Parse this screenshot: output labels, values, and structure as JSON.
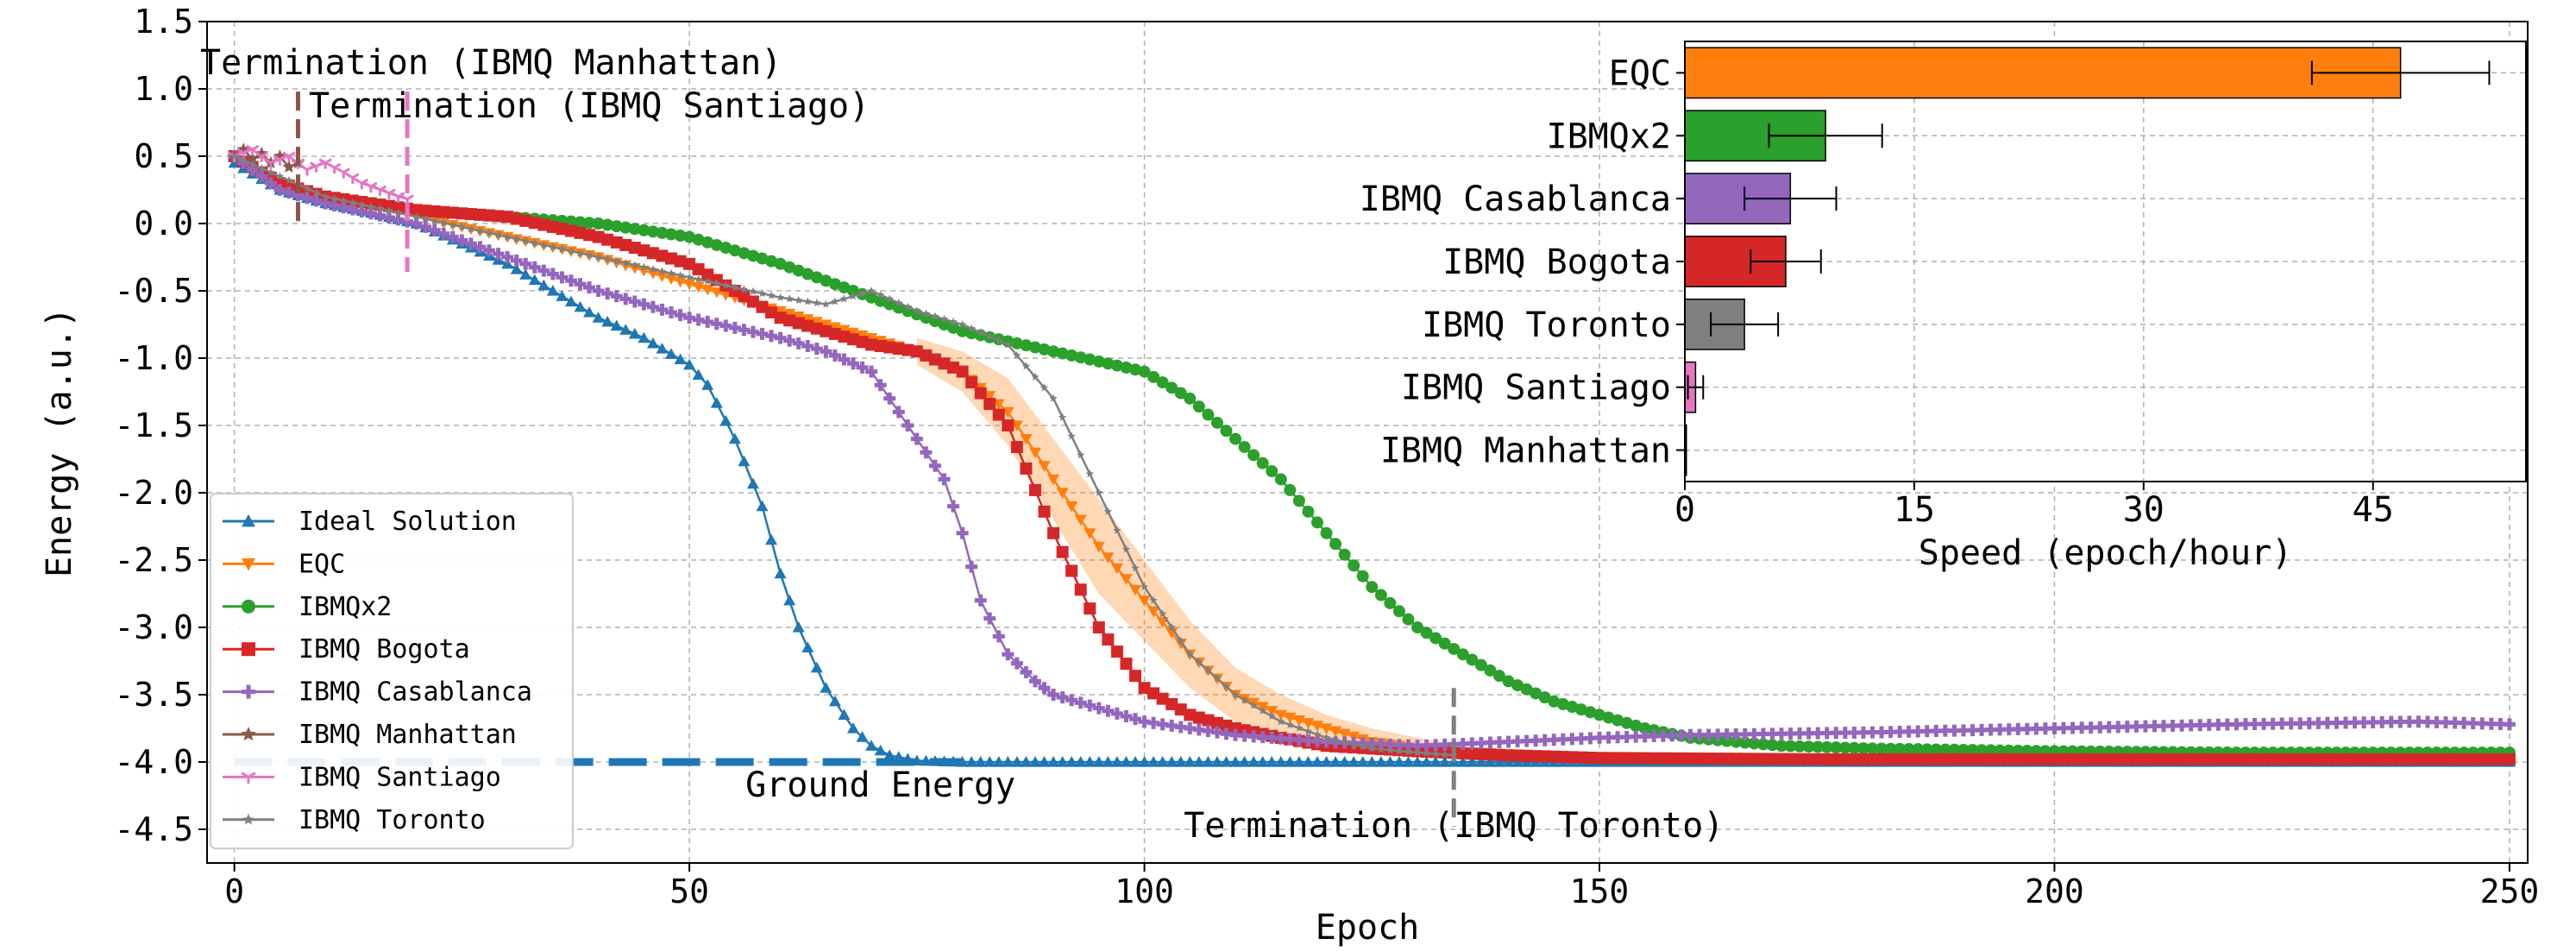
{
  "chart_data": [
    {
      "type": "line",
      "xlabel": "Epoch",
      "ylabel": "Energy (a.u.)",
      "xlim": [
        -3,
        252
      ],
      "ylim": [
        -4.75,
        1.5
      ],
      "xticks": [
        "0",
        "50",
        "100",
        "150",
        "200",
        "250"
      ],
      "yticks": [
        "1.5",
        "1.0",
        "0.5",
        "0.0",
        "-0.5",
        "-1.0",
        "-1.5",
        "-2.0",
        "-2.5",
        "-3.0",
        "-3.5",
        "-4.0",
        "-4.5"
      ],
      "grid": true,
      "legend_position": "lower-left",
      "series": [
        {
          "name": "Ideal Solution",
          "color": "#1f77b4",
          "marker": "triangle-up",
          "x": [
            0,
            5,
            10,
            15,
            20,
            25,
            30,
            35,
            40,
            45,
            50,
            52,
            55,
            58,
            60,
            62,
            65,
            68,
            70,
            72,
            75,
            80,
            85,
            90,
            100,
            120,
            150,
            200,
            250
          ],
          "y": [
            0.45,
            0.25,
            0.15,
            0.08,
            0.0,
            -0.15,
            -0.3,
            -0.5,
            -0.7,
            -0.85,
            -1.05,
            -1.2,
            -1.6,
            -2.1,
            -2.6,
            -3.0,
            -3.45,
            -3.75,
            -3.88,
            -3.95,
            -3.99,
            -4.0,
            -4.0,
            -4.0,
            -4.0,
            -4.0,
            -4.0,
            -4.0,
            -4.0
          ]
        },
        {
          "name": "EQC",
          "color": "#ff7f0e",
          "marker": "triangle-down",
          "x": [
            0,
            5,
            10,
            20,
            30,
            40,
            50,
            60,
            70,
            75,
            80,
            85,
            90,
            95,
            100,
            105,
            110,
            115,
            120,
            125,
            130,
            135,
            140,
            150,
            175,
            200,
            225,
            250
          ],
          "y": [
            0.5,
            0.3,
            0.2,
            0.05,
            -0.1,
            -0.25,
            -0.45,
            -0.65,
            -0.85,
            -0.95,
            -1.1,
            -1.4,
            -1.9,
            -2.4,
            -2.8,
            -3.2,
            -3.5,
            -3.65,
            -3.75,
            -3.85,
            -3.9,
            -3.93,
            -3.95,
            -3.97,
            -3.98,
            -3.98,
            -3.98,
            -3.98
          ]
        },
        {
          "name": "IBMQx2",
          "color": "#2ca02c",
          "marker": "circle",
          "x": [
            0,
            5,
            10,
            20,
            30,
            40,
            50,
            60,
            70,
            80,
            90,
            100,
            105,
            110,
            115,
            120,
            125,
            130,
            135,
            140,
            145,
            150,
            155,
            160,
            170,
            180,
            200,
            220,
            250
          ],
          "y": [
            0.5,
            0.3,
            0.2,
            0.1,
            0.05,
            0.0,
            -0.1,
            -0.3,
            -0.55,
            -0.8,
            -0.95,
            -1.1,
            -1.3,
            -1.6,
            -1.9,
            -2.3,
            -2.7,
            -3.0,
            -3.2,
            -3.4,
            -3.55,
            -3.65,
            -3.75,
            -3.82,
            -3.88,
            -3.9,
            -3.92,
            -3.93,
            -3.93
          ]
        },
        {
          "name": "IBMQ Bogota",
          "color": "#d62728",
          "marker": "square",
          "x": [
            0,
            5,
            10,
            20,
            30,
            40,
            50,
            55,
            60,
            65,
            70,
            75,
            80,
            85,
            90,
            95,
            100,
            105,
            110,
            115,
            120,
            130,
            140,
            150,
            175,
            200,
            225,
            250
          ],
          "y": [
            0.5,
            0.3,
            0.2,
            0.1,
            0.05,
            -0.1,
            -0.3,
            -0.5,
            -0.7,
            -0.8,
            -0.9,
            -0.95,
            -1.1,
            -1.5,
            -2.3,
            -3.0,
            -3.45,
            -3.65,
            -3.75,
            -3.82,
            -3.88,
            -3.92,
            -3.95,
            -3.97,
            -3.98,
            -3.98,
            -3.98,
            -3.98
          ]
        },
        {
          "name": "IBMQ Casablanca",
          "color": "#9467bd",
          "marker": "plus",
          "x": [
            0,
            5,
            10,
            20,
            30,
            40,
            50,
            60,
            65,
            70,
            72,
            75,
            78,
            80,
            82,
            85,
            88,
            90,
            95,
            100,
            110,
            120,
            130,
            140,
            150,
            160,
            180,
            200,
            220,
            240,
            250
          ],
          "y": [
            0.5,
            0.25,
            0.15,
            0.0,
            -0.25,
            -0.5,
            -0.7,
            -0.85,
            -0.95,
            -1.1,
            -1.3,
            -1.6,
            -1.9,
            -2.3,
            -2.8,
            -3.2,
            -3.4,
            -3.5,
            -3.6,
            -3.7,
            -3.8,
            -3.85,
            -3.88,
            -3.85,
            -3.82,
            -3.8,
            -3.78,
            -3.75,
            -3.72,
            -3.7,
            -3.72
          ]
        },
        {
          "name": "IBMQ Manhattan",
          "color": "#8c564b",
          "marker": "star",
          "x": [
            0,
            1,
            2,
            3,
            4,
            5,
            6,
            7
          ],
          "y": [
            0.5,
            0.55,
            0.48,
            0.52,
            0.45,
            0.5,
            0.42,
            0.45
          ]
        },
        {
          "name": "IBMQ Santiago",
          "color": "#e377c2",
          "marker": "tri",
          "x": [
            0,
            2,
            4,
            6,
            8,
            10,
            12,
            14,
            16,
            18,
            19
          ],
          "y": [
            0.5,
            0.55,
            0.45,
            0.5,
            0.4,
            0.45,
            0.38,
            0.3,
            0.25,
            0.2,
            0.18
          ]
        },
        {
          "name": "IBMQ Toronto",
          "color": "#7f7f7f",
          "marker": "star-small",
          "x": [
            0,
            10,
            20,
            30,
            40,
            50,
            60,
            65,
            70,
            75,
            80,
            85,
            90,
            95,
            100,
            105,
            110,
            115,
            120,
            125,
            130,
            134
          ],
          "y": [
            0.5,
            0.2,
            0.05,
            -0.1,
            -0.25,
            -0.4,
            -0.55,
            -0.6,
            -0.5,
            -0.65,
            -0.75,
            -0.9,
            -1.3,
            -2.0,
            -2.7,
            -3.2,
            -3.5,
            -3.7,
            -3.82,
            -3.9,
            -3.93,
            -3.95
          ]
        }
      ],
      "eqc_band": {
        "x": [
          75,
          80,
          85,
          90,
          95,
          100,
          105,
          110,
          115,
          120,
          125,
          130,
          135
        ],
        "upper": [
          -0.85,
          -0.95,
          -1.15,
          -1.6,
          -2.05,
          -2.5,
          -2.95,
          -3.3,
          -3.5,
          -3.65,
          -3.75,
          -3.82,
          -3.88
        ],
        "lower": [
          -1.05,
          -1.25,
          -1.65,
          -2.2,
          -2.75,
          -3.1,
          -3.45,
          -3.7,
          -3.8,
          -3.87,
          -3.92,
          -3.95,
          -3.96
        ]
      },
      "ground_energy": {
        "value": -4.0,
        "label": "Ground Energy",
        "x_end": 80
      },
      "annotations": [
        {
          "label": "Termination (IBMQ Manhattan)",
          "x": 7,
          "color": "#8c564b"
        },
        {
          "label": "Termination (IBMQ Santiago)",
          "x": 19,
          "color": "#e377c2"
        },
        {
          "label": "Termination (IBMQ Toronto)",
          "x": 134,
          "color": "#7f7f7f"
        }
      ]
    },
    {
      "type": "bar",
      "orientation": "horizontal",
      "xlabel": "Speed (epoch/hour)",
      "xlim": [
        0,
        55
      ],
      "xticks": [
        "0",
        "15",
        "30",
        "45"
      ],
      "categories": [
        "EQC",
        "IBMQx2",
        "IBMQ Casablanca",
        "IBMQ Bogota",
        "IBMQ Toronto",
        "IBMQ Santiago",
        "IBMQ Manhattan"
      ],
      "values": [
        46.8,
        9.2,
        6.9,
        6.6,
        3.9,
        0.7,
        0.1
      ],
      "errors": [
        5.8,
        3.7,
        3.0,
        2.3,
        2.2,
        0.5,
        0.0
      ],
      "colors": [
        "#ff7f0e",
        "#2ca02c",
        "#9467bd",
        "#d62728",
        "#7f7f7f",
        "#e377c2",
        "#8c564b"
      ]
    }
  ]
}
